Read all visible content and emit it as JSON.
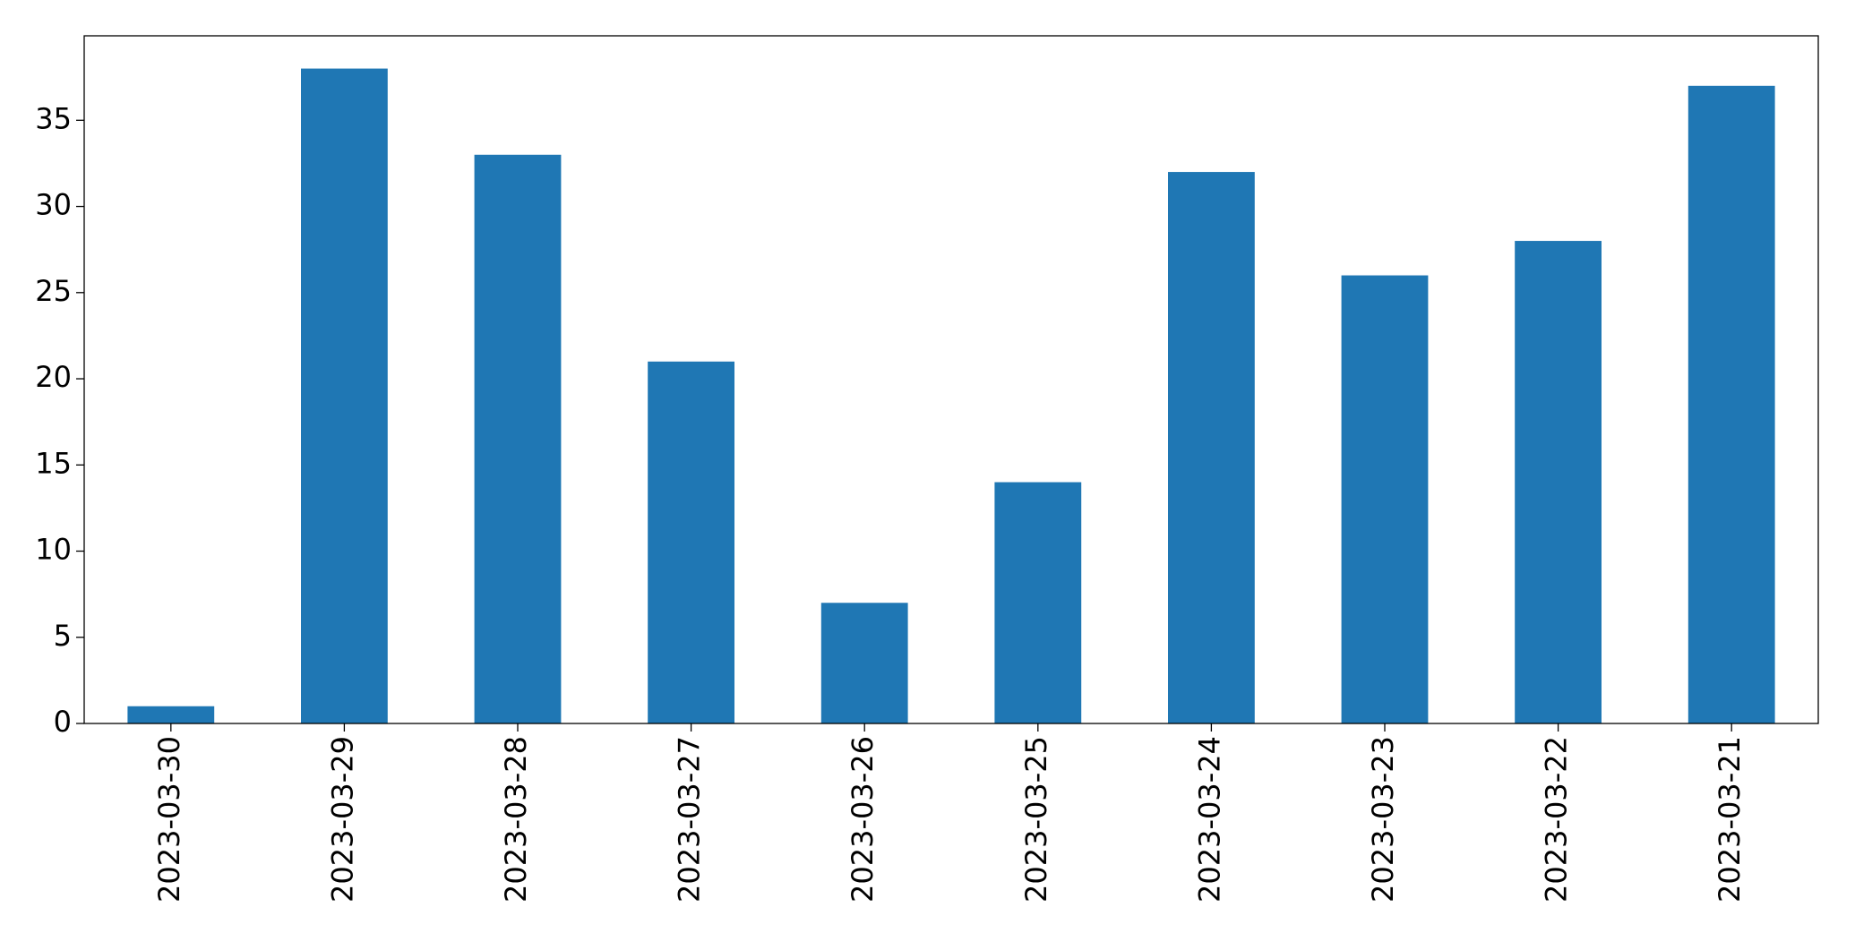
{
  "chart_data": {
    "type": "bar",
    "categories": [
      "2023-03-30",
      "2023-03-29",
      "2023-03-28",
      "2023-03-27",
      "2023-03-26",
      "2023-03-25",
      "2023-03-24",
      "2023-03-23",
      "2023-03-22",
      "2023-03-21"
    ],
    "values": [
      1,
      38,
      33,
      21,
      7,
      14,
      32,
      26,
      28,
      37
    ],
    "color": "#1f77b4",
    "ylim": [
      0,
      39.9
    ],
    "yticks": [
      0,
      5,
      10,
      15,
      20,
      25,
      30,
      35
    ],
    "grid": false
  }
}
